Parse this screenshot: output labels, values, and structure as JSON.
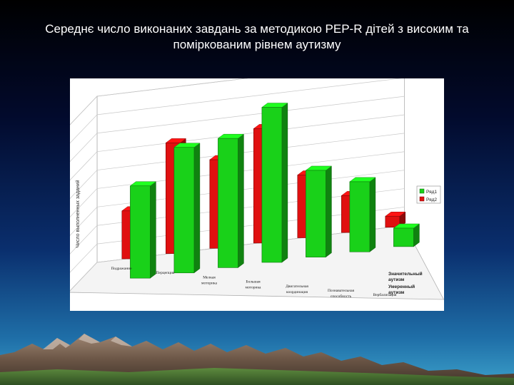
{
  "slide": {
    "title": "Середнє число виконаних завдань за методикою PEP-R дітей з високим та поміркованим рівнем аутизму"
  },
  "chart_data": {
    "type": "bar",
    "title": "",
    "ylabel": "Число выполненных заданий",
    "xlabel": "",
    "ylim": [
      0,
      9
    ],
    "yticks": [
      0,
      1,
      2,
      3,
      4,
      5,
      6,
      7,
      8,
      9
    ],
    "grid": true,
    "legend_placement": "right",
    "categories": [
      "Подражание",
      "Перцепция",
      "Мелкая моторика",
      "Большая моторика",
      "Двигательная координация",
      "Познавательная способность",
      "Вербализация"
    ],
    "series": [
      {
        "name": "Ряд1",
        "color": "#19d119",
        "values": [
          5.0,
          6.8,
          7.0,
          8.4,
          4.7,
          3.8,
          1.0
        ]
      },
      {
        "name": "Ряд2",
        "color": "#e01010",
        "values": [
          2.6,
          6.0,
          4.8,
          6.2,
          3.4,
          2.0,
          0.6
        ]
      }
    ],
    "depth_labels": [
      "Значительный аутизм",
      "Умеренный аутизм"
    ]
  }
}
